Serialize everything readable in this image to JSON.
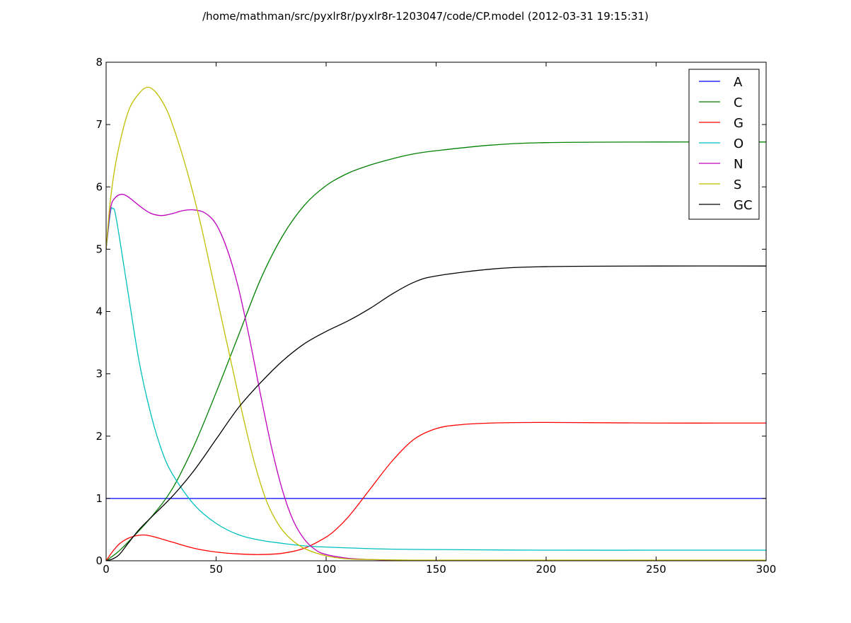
{
  "chart_data": {
    "type": "line",
    "title": "/home/mathman/src/pyxlr8r/pyxlr8r-1203047/code/CP.model (2012-03-31 19:15:31)",
    "xlabel": "",
    "ylabel": "",
    "xlim": [
      0,
      300
    ],
    "ylim": [
      0,
      8
    ],
    "xticks": [
      0,
      50,
      100,
      150,
      200,
      250,
      300
    ],
    "yticks": [
      0,
      1,
      2,
      3,
      4,
      5,
      6,
      7,
      8
    ],
    "grid": false,
    "legend_position": "top-right",
    "series": [
      {
        "name": "A",
        "color": "#0000ff",
        "x": [
          0,
          300
        ],
        "y": [
          1,
          1
        ]
      },
      {
        "name": "C",
        "color": "#008000",
        "x": [
          0,
          5,
          10,
          20,
          30,
          40,
          50,
          60,
          70,
          80,
          90,
          100,
          110,
          120,
          130,
          140,
          150,
          175,
          200,
          250,
          300
        ],
        "y": [
          0,
          0.13,
          0.3,
          0.68,
          1.15,
          1.85,
          2.7,
          3.6,
          4.5,
          5.2,
          5.7,
          6.02,
          6.22,
          6.35,
          6.45,
          6.53,
          6.58,
          6.67,
          6.71,
          6.72,
          6.72
        ]
      },
      {
        "name": "G",
        "color": "#ff0000",
        "x": [
          0,
          3,
          6,
          10,
          15,
          20,
          30,
          40,
          50,
          60,
          70,
          80,
          90,
          100,
          105,
          110,
          115,
          120,
          130,
          140,
          150,
          160,
          175,
          200,
          250,
          300
        ],
        "y": [
          0,
          0.15,
          0.27,
          0.36,
          0.41,
          0.4,
          0.3,
          0.2,
          0.14,
          0.11,
          0.1,
          0.12,
          0.2,
          0.38,
          0.52,
          0.7,
          0.92,
          1.15,
          1.6,
          1.95,
          2.12,
          2.18,
          2.21,
          2.22,
          2.21,
          2.21
        ]
      },
      {
        "name": "O",
        "color": "#00bfbf",
        "x": [
          0,
          2,
          3,
          4,
          6,
          10,
          15,
          20,
          25,
          30,
          40,
          50,
          60,
          70,
          80,
          90,
          100,
          125,
          150,
          200,
          250,
          300
        ],
        "y": [
          5.0,
          5.6,
          5.65,
          5.6,
          5.2,
          4.3,
          3.2,
          2.4,
          1.8,
          1.4,
          0.9,
          0.6,
          0.42,
          0.33,
          0.28,
          0.24,
          0.22,
          0.19,
          0.18,
          0.17,
          0.17,
          0.17
        ]
      },
      {
        "name": "N",
        "color": "#bf00bf",
        "x": [
          0,
          2,
          4,
          7,
          10,
          15,
          20,
          25,
          30,
          35,
          40,
          45,
          50,
          55,
          60,
          65,
          70,
          75,
          80,
          85,
          90,
          95,
          100,
          110,
          120,
          130,
          150,
          200,
          300
        ],
        "y": [
          5.0,
          5.65,
          5.82,
          5.88,
          5.84,
          5.7,
          5.58,
          5.54,
          5.57,
          5.62,
          5.63,
          5.58,
          5.4,
          5.0,
          4.4,
          3.6,
          2.7,
          1.85,
          1.15,
          0.65,
          0.35,
          0.18,
          0.1,
          0.04,
          0.02,
          0.01,
          0.01,
          0.01,
          0.01
        ]
      },
      {
        "name": "S",
        "color": "#bfbf00",
        "x": [
          0,
          2,
          5,
          10,
          15,
          19,
          23,
          28,
          33,
          38,
          43,
          48,
          53,
          58,
          63,
          68,
          73,
          78,
          83,
          90,
          100,
          110,
          120,
          140,
          160,
          200,
          300
        ],
        "y": [
          5.0,
          5.8,
          6.5,
          7.2,
          7.5,
          7.6,
          7.5,
          7.2,
          6.7,
          6.1,
          5.4,
          4.6,
          3.8,
          3.0,
          2.2,
          1.5,
          0.95,
          0.6,
          0.38,
          0.2,
          0.08,
          0.03,
          0.02,
          0.01,
          0.01,
          0.01,
          0.01
        ]
      },
      {
        "name": "GC",
        "color": "#000000",
        "x": [
          0,
          3,
          6,
          10,
          15,
          20,
          30,
          40,
          50,
          60,
          70,
          80,
          90,
          100,
          110,
          120,
          130,
          140,
          150,
          175,
          200,
          250,
          300
        ],
        "y": [
          0,
          0.03,
          0.1,
          0.28,
          0.5,
          0.68,
          1.03,
          1.45,
          1.95,
          2.45,
          2.85,
          3.2,
          3.48,
          3.68,
          3.85,
          4.05,
          4.28,
          4.47,
          4.57,
          4.68,
          4.72,
          4.73,
          4.73
        ]
      }
    ]
  }
}
